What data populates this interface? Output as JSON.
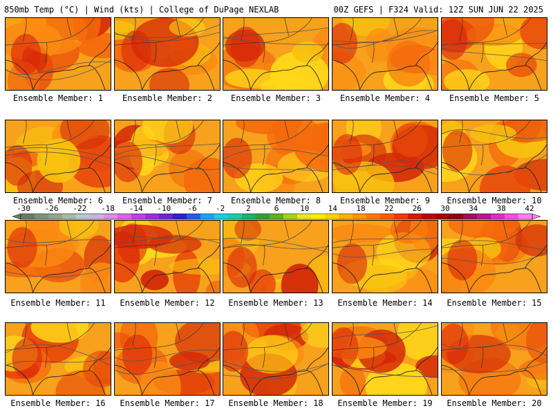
{
  "header": {
    "left": "850mb Temp (°C) | Wind (kts) | College of DuPage NEXLAB",
    "right": "00Z GEFS | F324 Valid: 12Z SUN JUN 22 2025"
  },
  "members": [
    {
      "label": "Ensemble Member: 1"
    },
    {
      "label": "Ensemble Member: 2"
    },
    {
      "label": "Ensemble Member: 3"
    },
    {
      "label": "Ensemble Member: 4"
    },
    {
      "label": "Ensemble Member: 5"
    },
    {
      "label": "Ensemble Member: 6"
    },
    {
      "label": "Ensemble Member: 7"
    },
    {
      "label": "Ensemble Member: 8"
    },
    {
      "label": "Ensemble Member: 9"
    },
    {
      "label": "Ensemble Member: 10"
    },
    {
      "label": "Ensemble Member: 11"
    },
    {
      "label": "Ensemble Member: 12"
    },
    {
      "label": "Ensemble Member: 13"
    },
    {
      "label": "Ensemble Member: 14"
    },
    {
      "label": "Ensemble Member: 15"
    },
    {
      "label": "Ensemble Member: 16"
    },
    {
      "label": "Ensemble Member: 17"
    },
    {
      "label": "Ensemble Member: 18"
    },
    {
      "label": "Ensemble Member: 19"
    },
    {
      "label": "Ensemble Member: 20"
    }
  ],
  "colorbar": {
    "labels": [
      "-30",
      "-26",
      "-22",
      "-18",
      "-14",
      "-10",
      "-6",
      "-2",
      "2",
      "6",
      "10",
      "14",
      "18",
      "22",
      "26",
      "30",
      "34",
      "38",
      "42"
    ],
    "colors": [
      "#6a7a6a",
      "#7f8f7f",
      "#94a494",
      "#a9b9a9",
      "#b8c6d6",
      "#c9b3e6",
      "#d98ee8",
      "#e060e8",
      "#c040e0",
      "#9a30d8",
      "#6a28d0",
      "#3020c8",
      "#1f5fe0",
      "#1fa0f0",
      "#20c8e8",
      "#20c8a8",
      "#20b070",
      "#30a030",
      "#60b020",
      "#a8d020",
      "#e8e820",
      "#f8f000",
      "#ffd200",
      "#ffb000",
      "#ff9600",
      "#ff7800",
      "#ff5a00",
      "#f03a00",
      "#d81800",
      "#c00000",
      "#a00000",
      "#8a0018",
      "#9a1060",
      "#b81890",
      "#d830c0",
      "#f050e0",
      "#ff80f0"
    ]
  }
}
